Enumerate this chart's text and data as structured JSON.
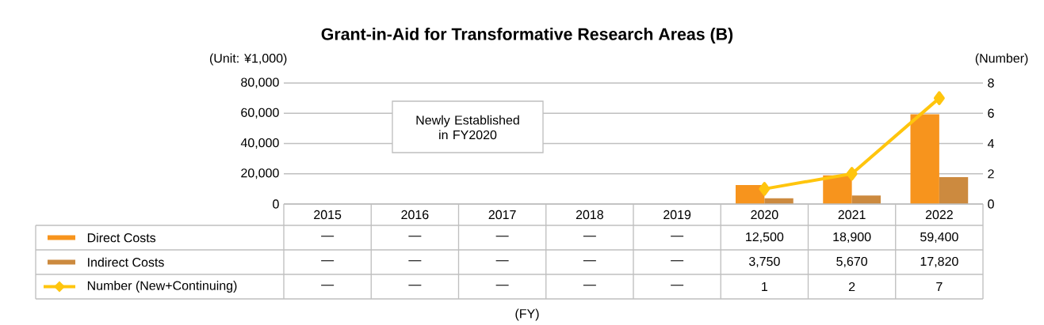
{
  "chart_data": {
    "type": "bar",
    "title": "Grant-in-Aid for Transformative Research Areas (B)",
    "ylabel": "(Unit: ¥1,000)",
    "y2label": "(Number)",
    "categories": [
      "2015",
      "2016",
      "2017",
      "2018",
      "2019",
      "2020",
      "2021",
      "2022"
    ],
    "series": [
      {
        "name": "Direct Costs",
        "color": "#f7941d",
        "values": [
          null,
          null,
          null,
          null,
          null,
          12500,
          18900,
          59400
        ],
        "value_labels": [
          "—",
          "—",
          "—",
          "—",
          "—",
          "12,500",
          "18,900",
          "59,400"
        ]
      },
      {
        "name": "Indirect Costs",
        "color": "#cc8a3f",
        "values": [
          null,
          null,
          null,
          null,
          null,
          3750,
          5670,
          17820
        ],
        "value_labels": [
          "—",
          "—",
          "—",
          "—",
          "—",
          "3,750",
          "5,670",
          "17,820"
        ]
      },
      {
        "name": "Number (New+Continuing)",
        "type": "line",
        "axis": "y2",
        "marker": "diamond",
        "line_style": "solid",
        "color": "#ffc50d",
        "values": [
          null,
          null,
          null,
          null,
          null,
          1,
          2,
          7
        ],
        "value_labels": [
          "—",
          "—",
          "—",
          "—",
          "—",
          "1",
          "2",
          "7"
        ]
      }
    ],
    "ylim": [
      0,
      80000
    ],
    "yticks": [
      {
        "value": 0,
        "label": "0"
      },
      {
        "value": 20000,
        "label": "20,000"
      },
      {
        "value": 40000,
        "label": "40,000"
      },
      {
        "value": 60000,
        "label": "60,000"
      },
      {
        "value": 80000,
        "label": "80,000"
      }
    ],
    "y2lim": [
      0,
      8
    ],
    "y2ticks": [
      0,
      2,
      4,
      6,
      8
    ],
    "grid": "y",
    "legend": "bottom left",
    "annotations": [
      "Newly Established in FY2020",
      "(FY)"
    ]
  }
}
